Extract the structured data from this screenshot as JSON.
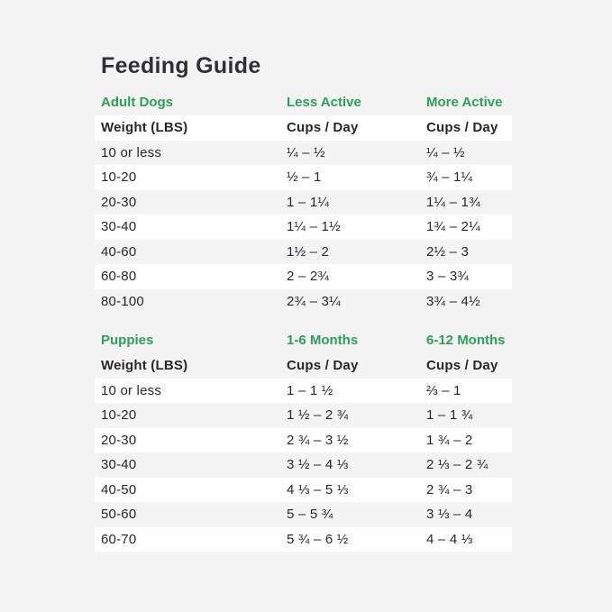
{
  "title": "Feeding Guide",
  "colors": {
    "page_background": "#f4f4f5",
    "row_band": "#ffffff",
    "accent_green": "#2aa157",
    "title_text": "#303137",
    "body_text": "#28282c"
  },
  "adult_dogs": {
    "section_label": "Adult Dogs",
    "col2_label": "Less Active",
    "col3_label": "More Active",
    "header": {
      "weight": "Weight (LBS)",
      "col2": "Cups / Day",
      "col3": "Cups / Day"
    },
    "rows": [
      {
        "weight": "10 or less",
        "less_active": "¼ – ½",
        "more_active": "¼ – ½"
      },
      {
        "weight": "10-20",
        "less_active": "½ – 1",
        "more_active": "¾ – 1¼"
      },
      {
        "weight": "20-30",
        "less_active": "1 – 1¼",
        "more_active": "1¼ – 1¾"
      },
      {
        "weight": "30-40",
        "less_active": "1¼ – 1½",
        "more_active": "1¾ – 2¼"
      },
      {
        "weight": "40-60",
        "less_active": "1½ – 2",
        "more_active": "2½ – 3"
      },
      {
        "weight": "60-80",
        "less_active": "2 – 2¾",
        "more_active": "3 – 3¾"
      },
      {
        "weight": "80-100",
        "less_active": "2¾ – 3¼",
        "more_active": "3¾ – 4½"
      }
    ]
  },
  "puppies": {
    "section_label": "Puppies",
    "col2_label": "1-6 Months",
    "col3_label": "6-12 Months",
    "header": {
      "weight": "Weight (LBS)",
      "col2": "Cups / Day",
      "col3": "Cups / Day"
    },
    "rows": [
      {
        "weight": "10 or less",
        "months_1_6": "1 – 1 ½",
        "months_6_12": "⅔ – 1"
      },
      {
        "weight": "10-20",
        "months_1_6": "1 ½ – 2 ¾",
        "months_6_12": "1 – 1 ¾"
      },
      {
        "weight": "20-30",
        "months_1_6": "2 ¾ – 3 ½",
        "months_6_12": "1 ¾ – 2"
      },
      {
        "weight": "30-40",
        "months_1_6": "3 ½ – 4 ⅓",
        "months_6_12": "2 ⅓ – 2 ¾"
      },
      {
        "weight": "40-50",
        "months_1_6": "4 ⅓ – 5 ⅓",
        "months_6_12": "2 ¾ – 3"
      },
      {
        "weight": "50-60",
        "months_1_6": "5 – 5 ¾",
        "months_6_12": "3 ⅓ – 4"
      },
      {
        "weight": "60-70",
        "months_1_6": "5 ¾ – 6 ½",
        "months_6_12": "4 – 4 ⅓"
      }
    ]
  }
}
